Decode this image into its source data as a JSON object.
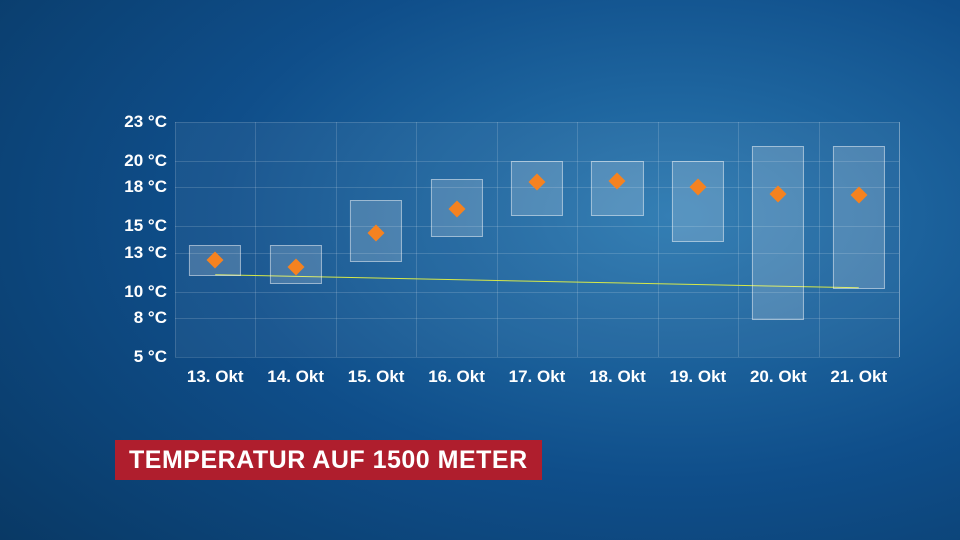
{
  "caption": {
    "text": "TEMPERATUR AUF 1500 METER",
    "bg": "#af1e2d",
    "color": "#ffffff"
  },
  "chart": {
    "type": "boxplot",
    "background_gradient_from": "#2a78b0",
    "background_gradient_to": "#041f3e",
    "plot_bg": "rgba(255,255,255,0.05)",
    "grid_color": "rgba(255,255,255,0.15)",
    "box_fill": "rgba(255,255,255,0.18)",
    "box_border": "rgba(255,255,255,0.45)",
    "point_color": "#f58220",
    "trend_color": "#d6e84a",
    "label_fontsize": 17,
    "label_color": "#ffffff",
    "y": {
      "min": 5,
      "max": 23,
      "ticks": [
        5,
        8,
        10,
        13,
        15,
        18,
        20,
        23
      ],
      "tick_labels": [
        "5 °C",
        "8 °C",
        "10 °C",
        "13 °C",
        "15 °C",
        "18 °C",
        "20 °C",
        "23 °C"
      ]
    },
    "x": {
      "labels": [
        "13. Okt",
        "14. Okt",
        "15. Okt",
        "16. Okt",
        "17. Okt",
        "18. Okt",
        "19. Okt",
        "20. Okt",
        "21. Okt"
      ]
    },
    "bar_width_pct": 7.2,
    "series": [
      {
        "low": 11.2,
        "high": 13.6,
        "mid": 12.4
      },
      {
        "low": 10.6,
        "high": 13.6,
        "mid": 11.9
      },
      {
        "low": 12.3,
        "high": 17.0,
        "mid": 14.5
      },
      {
        "low": 14.2,
        "high": 18.6,
        "mid": 16.3
      },
      {
        "low": 15.8,
        "high": 20.0,
        "mid": 18.4
      },
      {
        "low": 15.8,
        "high": 20.0,
        "mid": 18.5
      },
      {
        "low": 13.8,
        "high": 20.0,
        "mid": 18.0
      },
      {
        "low": 7.8,
        "high": 21.2,
        "mid": 17.5
      },
      {
        "low": 10.2,
        "high": 21.2,
        "mid": 17.4
      }
    ],
    "trend": {
      "y_start": 11.3,
      "y_end": 10.3
    }
  }
}
